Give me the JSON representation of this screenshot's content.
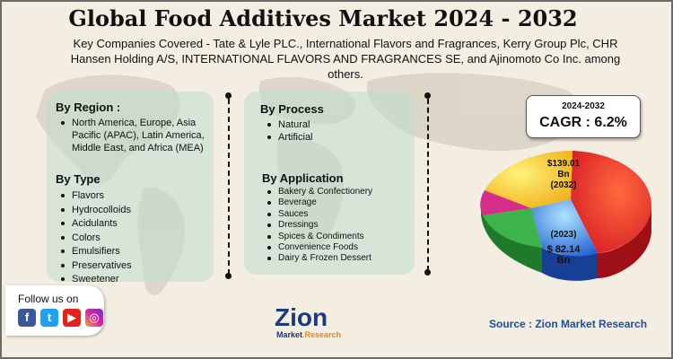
{
  "header": {
    "title": "Global Food Additives Market 2024 - 2032",
    "companies": "Key Companies Covered - Tate & Lyle PLC., International Flavors and Fragrances, Kerry Group Plc, CHR Hansen Holding A/S, INTERNATIONAL FLAVORS AND FRAGRANCES SE, and Ajinomoto Co Inc. among others."
  },
  "segments": {
    "region": {
      "title": "By Region :",
      "items": [
        "North America, Europe, Asia Pacific (APAC), Latin America, Middle East, and Africa (MEA)"
      ]
    },
    "type": {
      "title": "By Type",
      "items": [
        "Flavors",
        "Hydrocolloids",
        "Acidulants",
        "Colors",
        "Emulsifiers",
        "Preservatives",
        "Sweetener"
      ]
    },
    "process": {
      "title": "By Process",
      "items": [
        "Natural",
        "Artificial"
      ]
    },
    "application": {
      "title": "By Application",
      "items": [
        "Bakery & Confectionery",
        "Beverage",
        "Sauces",
        "Dressings",
        "Spices & Condiments",
        "Convenience Foods",
        "Dairy & Frozen Dessert"
      ]
    }
  },
  "cagr": {
    "period": "2024-2032",
    "value": "CAGR : 6.2%"
  },
  "market_size": {
    "value_2032": "$139.01",
    "unit_2032": "Bn",
    "year_2032": "(2032)",
    "year_2023": "(2023)",
    "value_2023": "$ 82.14",
    "unit_2023": "Bn"
  },
  "pie_colors": [
    "#e8262a",
    "#f5d31f",
    "#2b7de0",
    "#3cb44a",
    "#d62d8a"
  ],
  "social": {
    "label": "Follow us on",
    "icons": [
      "facebook-icon",
      "twitter-icon",
      "youtube-icon",
      "instagram-icon"
    ]
  },
  "logo": {
    "word": "Zion",
    "sub_part1": "Market",
    "sub_part2": ".Research"
  },
  "source": "Source : Zion Market Research"
}
